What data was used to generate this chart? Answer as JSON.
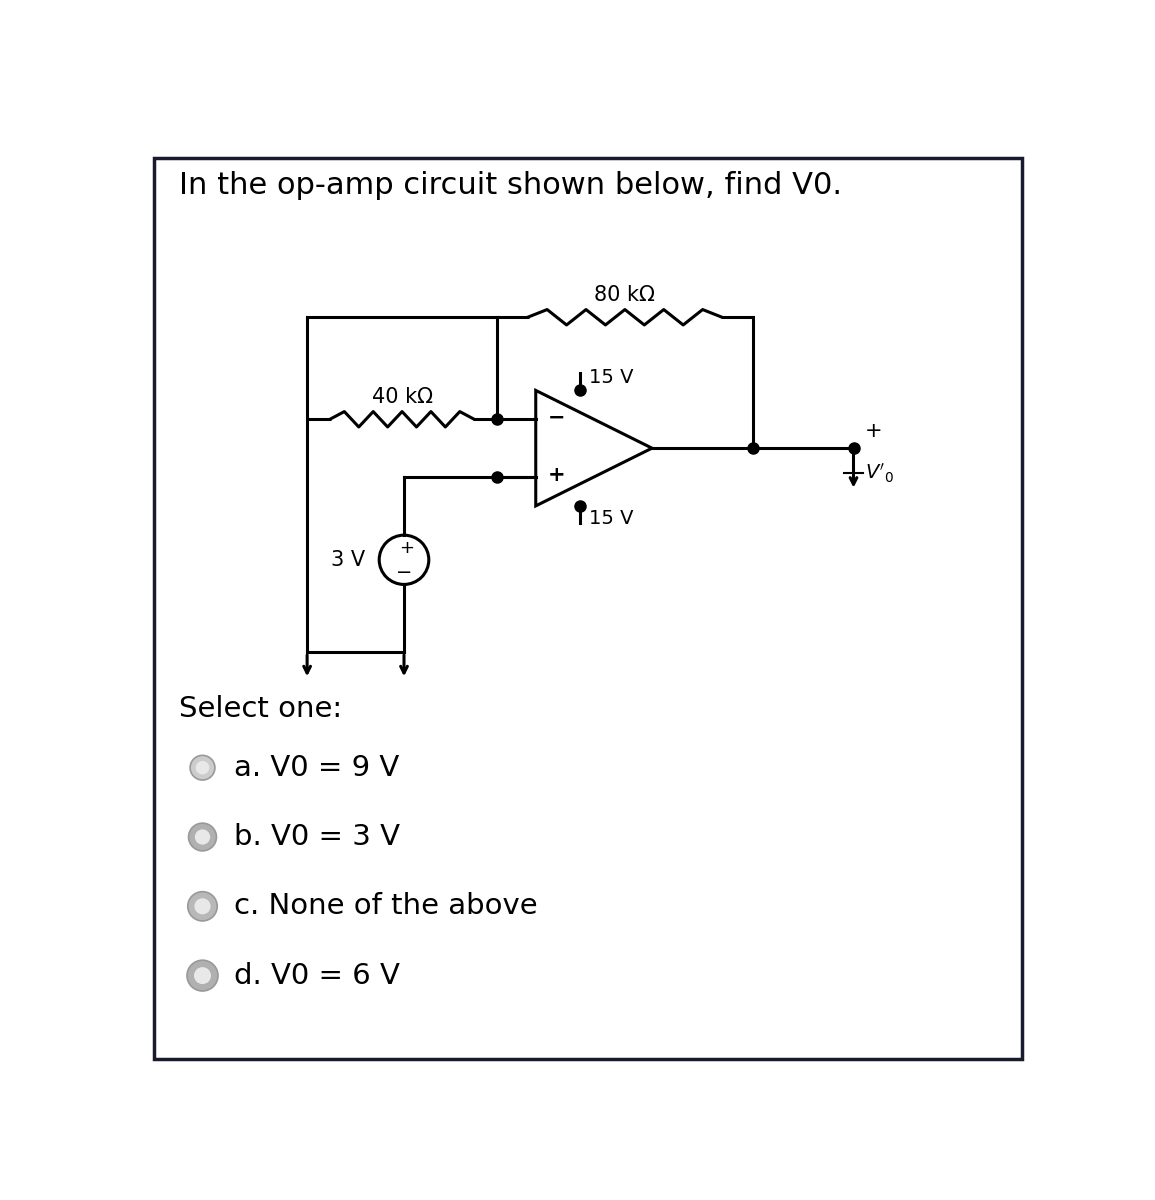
{
  "title": "In the op-amp circuit shown below, find V0.",
  "bg_color": "#ffffff",
  "border_color": "#1a1a2e",
  "circuit": {
    "resistor_40k_label": "40 kΩ",
    "resistor_80k_label": "80 kΩ",
    "voltage_source_label": "3 V",
    "supply_pos_label": "15 V",
    "supply_neg_label": "15 V",
    "vo_label": "V₀",
    "line_color": "#000000",
    "lw": 2.2
  },
  "choices": [
    "a. V0 = 9 V",
    "b. V0 = 3 V",
    "c. None of the above",
    "d. V0 = 6 V"
  ],
  "select_text": "Select one:",
  "radio_sizes": [
    0.16,
    0.18,
    0.19,
    0.2
  ],
  "radio_grays": [
    "#cccccc",
    "#b0b0b0",
    "#b8b8b8",
    "#b0b0b0"
  ]
}
